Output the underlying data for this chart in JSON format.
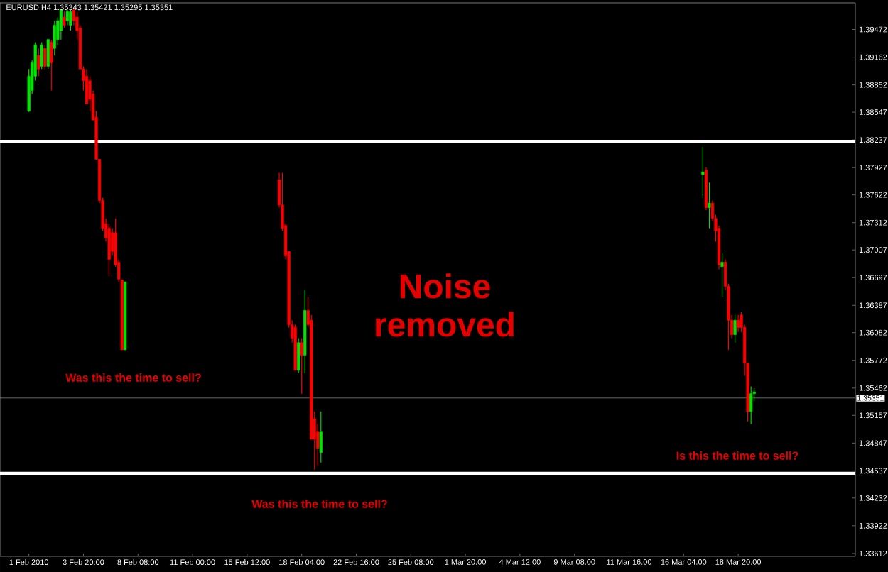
{
  "chart_data": {
    "type": "candlestick",
    "title": "EURUSD,H4 1.35343 1.35421 1.35295 1.35351",
    "categories": [
      "1 Feb 2010",
      null,
      null,
      null,
      null,
      null,
      null,
      null,
      null,
      null,
      null,
      null,
      null,
      null,
      null,
      null,
      null,
      "3 Feb 20:00",
      null,
      null,
      null,
      null,
      null,
      null,
      null,
      null,
      null,
      null,
      null,
      null,
      null,
      null,
      null,
      null,
      "8 Feb 08:00",
      null,
      null,
      null,
      null,
      null,
      null,
      null,
      null,
      null,
      null,
      null,
      null,
      null,
      null,
      null,
      null,
      "11 Feb 00:00",
      null,
      null,
      null,
      null,
      null,
      null,
      null,
      null,
      null,
      null,
      null,
      null,
      null,
      null,
      null,
      null,
      "15 Feb 12:00",
      null,
      null,
      null,
      null,
      null,
      null,
      null,
      null,
      null,
      null,
      null,
      null,
      null,
      null,
      null,
      null,
      "18 Feb 04:00",
      null,
      null,
      null,
      null,
      null,
      null,
      null,
      null,
      null,
      null,
      null,
      null,
      null,
      null,
      null,
      null,
      "22 Feb 16:00",
      null,
      null,
      null,
      null,
      null,
      null,
      null,
      null,
      null,
      null,
      null,
      null,
      null,
      null,
      null,
      null,
      "25 Feb 08:00",
      null,
      null,
      null,
      null,
      null,
      null,
      null,
      null,
      null,
      null,
      null,
      null,
      null,
      null,
      null,
      null,
      "1 Mar 20:00",
      null,
      null,
      null,
      null,
      null,
      null,
      null,
      null,
      null,
      null,
      null,
      null,
      null,
      null,
      null,
      null,
      "4 Mar 12:00",
      null,
      null,
      null,
      null,
      null,
      null,
      null,
      null,
      null,
      null,
      null,
      null,
      null,
      null,
      null,
      null,
      "9 Mar 08:00",
      null,
      null,
      null,
      null,
      null,
      null,
      null,
      null,
      null,
      null,
      null,
      null,
      null,
      null,
      null,
      null,
      "11 Mar 16:00",
      null,
      null,
      null,
      null,
      null,
      null,
      null,
      null,
      null,
      null,
      null,
      null,
      null,
      null,
      null,
      null,
      "16 Mar 04:00",
      null,
      null,
      null,
      null,
      null,
      null,
      null,
      null,
      null,
      null,
      null,
      null,
      null,
      null,
      null,
      null,
      "18 Mar 20:00",
      null,
      null,
      null,
      null,
      null,
      null,
      null,
      null,
      null,
      null,
      null,
      null,
      null,
      null,
      null,
      null,
      null,
      null,
      null,
      null,
      null,
      null,
      null,
      null,
      null,
      null,
      null,
      null,
      null,
      null,
      null,
      null,
      null,
      null,
      null,
      null
    ],
    "ohlc": [
      [
        1.3856,
        1.3903,
        1.3855,
        1.3895
      ],
      [
        1.3879,
        1.3913,
        1.3875,
        1.391
      ],
      [
        1.3895,
        1.3933,
        1.389,
        1.393
      ],
      [
        1.3918,
        1.3926,
        1.3895,
        1.3903
      ],
      [
        1.3906,
        1.3933,
        1.3903,
        1.393
      ],
      [
        1.3926,
        1.393,
        1.3903,
        1.3906
      ],
      [
        1.3906,
        1.3936,
        1.3903,
        1.3936
      ],
      [
        1.3933,
        1.3936,
        1.3879,
        1.391
      ],
      [
        1.3926,
        1.3957,
        1.3918,
        1.3952
      ],
      [
        1.3936,
        1.3961,
        1.393,
        1.3957
      ],
      [
        1.3946,
        1.3969,
        1.3936,
        1.3969
      ],
      [
        1.3961,
        1.3967,
        1.3949,
        1.3952
      ],
      [
        1.3957,
        1.3969,
        1.3952,
        1.3967
      ],
      [
        1.3952,
        1.3969,
        1.3946,
        1.3967
      ],
      [
        1.3969,
        1.3971,
        1.3952,
        1.3957
      ],
      [
        1.3961,
        1.3967,
        1.3936,
        1.3946
      ],
      [
        1.3949,
        1.3952,
        1.3903,
        1.3903
      ],
      [
        1.3903,
        1.3906,
        1.3879,
        1.389
      ],
      [
        1.3895,
        1.3903,
        1.3864,
        1.3864
      ],
      [
        1.389,
        1.3895,
        1.3856,
        1.3869
      ],
      [
        1.3875,
        1.3879,
        1.3846,
        1.3846
      ],
      [
        1.3849,
        1.3856,
        1.3802,
        1.3802
      ],
      [
        1.3802,
        1.3802,
        1.3753,
        1.3756
      ],
      [
        1.3756,
        1.3759,
        1.3722,
        1.3725
      ],
      [
        1.373,
        1.3736,
        1.371,
        1.3714
      ],
      [
        1.3725,
        1.373,
        1.3671,
        1.369
      ],
      [
        1.372,
        1.3725,
        1.3694,
        1.3699
      ],
      [
        1.372,
        1.3736,
        1.3682,
        1.3684
      ],
      [
        1.3687,
        1.369,
        1.3665,
        1.3668
      ],
      [
        1.3667,
        1.3667,
        1.3589,
        1.3589
      ],
      [
        1.3589,
        1.3665,
        1.3589,
        1.3665
      ],
      null,
      null,
      null,
      null,
      null,
      null,
      null,
      null,
      null,
      null,
      null,
      null,
      null,
      null,
      null,
      null,
      null,
      null,
      null,
      null,
      null,
      null,
      null,
      null,
      null,
      null,
      null,
      null,
      null,
      null,
      null,
      null,
      null,
      null,
      null,
      null,
      null,
      null,
      null,
      null,
      null,
      null,
      null,
      null,
      null,
      null,
      null,
      [
        1.3779,
        1.3787,
        1.3748,
        1.3751
      ],
      [
        1.3751,
        1.3787,
        1.3722,
        1.3725
      ],
      [
        1.3728,
        1.373,
        1.369,
        1.3694
      ],
      [
        1.3699,
        1.3699,
        1.3614,
        1.3617
      ],
      [
        1.3617,
        1.3622,
        1.3597,
        1.3602
      ],
      [
        1.3614,
        1.3617,
        1.3566,
        1.3566
      ],
      [
        1.3566,
        1.3602,
        1.3563,
        1.3597
      ],
      [
        1.3597,
        1.3602,
        1.354,
        1.3583
      ],
      [
        1.3583,
        1.3656,
        1.3563,
        1.3633
      ],
      [
        1.3633,
        1.3648,
        1.3614,
        1.3617
      ],
      [
        1.3622,
        1.3628,
        1.3489,
        1.3489
      ],
      [
        1.3512,
        1.352,
        1.3455,
        1.3489
      ],
      [
        1.3497,
        1.3506,
        1.346,
        1.3479
      ],
      [
        1.3474,
        1.352,
        1.3463,
        1.3497
      ],
      null,
      null,
      null,
      null,
      null,
      null,
      null,
      null,
      null,
      null,
      null,
      null,
      null,
      null,
      null,
      null,
      null,
      null,
      null,
      null,
      null,
      null,
      null,
      null,
      null,
      null,
      null,
      null,
      null,
      null,
      null,
      null,
      null,
      null,
      null,
      null,
      null,
      null,
      null,
      null,
      null,
      null,
      null,
      null,
      null,
      null,
      null,
      null,
      null,
      null,
      null,
      null,
      null,
      null,
      null,
      null,
      null,
      null,
      null,
      null,
      null,
      null,
      null,
      null,
      null,
      null,
      null,
      null,
      null,
      null,
      null,
      null,
      null,
      null,
      null,
      null,
      null,
      null,
      null,
      null,
      null,
      null,
      null,
      null,
      null,
      null,
      null,
      null,
      null,
      null,
      null,
      null,
      null,
      null,
      null,
      null,
      null,
      null,
      null,
      null,
      null,
      null,
      null,
      null,
      null,
      null,
      null,
      null,
      null,
      null,
      null,
      null,
      null,
      null,
      null,
      null,
      null,
      null,
      [
        1.3785,
        1.3816,
        1.3759,
        1.3788
      ],
      [
        1.379,
        1.3793,
        1.3745,
        1.3748
      ],
      [
        1.3748,
        1.3776,
        1.3725,
        1.3753
      ],
      [
        1.3753,
        1.3756,
        1.3733,
        1.3736
      ],
      [
        1.3736,
        1.374,
        1.371,
        1.3722
      ],
      [
        1.3725,
        1.3728,
        1.3679,
        1.3684
      ],
      [
        1.3682,
        1.3697,
        1.3648,
        1.3687
      ],
      [
        1.3687,
        1.369,
        1.3656,
        1.366
      ],
      [
        1.366,
        1.3663,
        1.3589,
        1.3622
      ],
      [
        1.3622,
        1.3628,
        1.3602,
        1.3606
      ],
      [
        1.3606,
        1.3628,
        1.3597,
        1.3622
      ],
      [
        1.3622,
        1.3628,
        1.3609,
        1.3614
      ],
      [
        1.3628,
        1.3631,
        1.3609,
        1.3614
      ],
      [
        1.3614,
        1.3617,
        1.356,
        1.3574
      ],
      [
        1.3574,
        1.3574,
        1.3509,
        1.352
      ],
      [
        1.352,
        1.3548,
        1.3506,
        1.354
      ],
      [
        1.354,
        1.3546,
        1.3532,
        1.3542
      ],
      null,
      null,
      null,
      null,
      null,
      null,
      null,
      null,
      null,
      null,
      null,
      null,
      null,
      null,
      null,
      null,
      null,
      null,
      null,
      null,
      null,
      null,
      null,
      null,
      null,
      null,
      null,
      null,
      null,
      null,
      null
    ],
    "ylim": [
      1.3358,
      1.3977
    ],
    "yticks": [
      1.39472,
      1.39162,
      1.38852,
      1.38547,
      1.38237,
      1.37927,
      1.37622,
      1.37312,
      1.37007,
      1.36697,
      1.36387,
      1.36082,
      1.35772,
      1.35462,
      1.35157,
      1.34847,
      1.34537,
      1.34232,
      1.33922,
      1.33612
    ],
    "ref_lines": [
      {
        "axis": "y",
        "value": 1.3822,
        "color": "#ffffff"
      },
      {
        "axis": "y",
        "value": 1.3451,
        "color": "#ffffff"
      },
      {
        "axis": "y",
        "value": 1.35351,
        "label": "1.35351",
        "color": "#808080"
      }
    ],
    "annotations": [
      "Noise removed",
      "Was this the time to sell?",
      "Was  this the time to sell?",
      "Is this the time to sell?"
    ]
  }
}
